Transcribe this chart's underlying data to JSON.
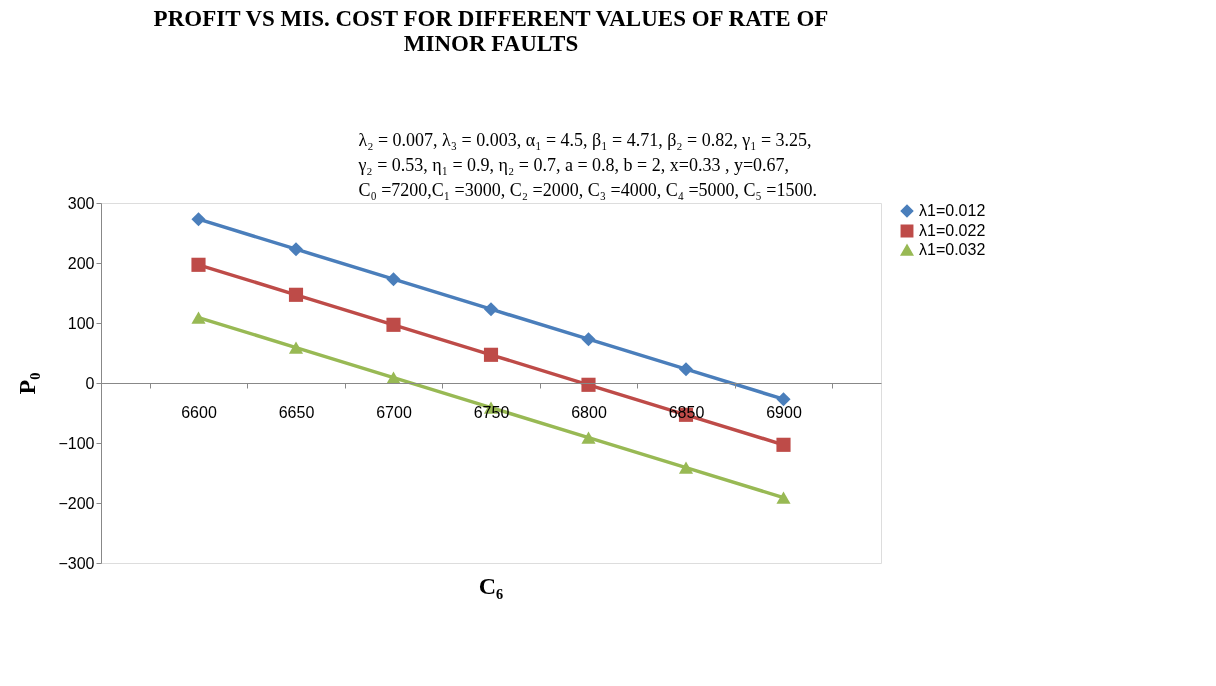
{
  "chart_data": {
    "type": "line",
    "title": [
      "PROFIT VS MIS. COST FOR DIFFERENT VALUES OF RATE OF",
      "MINOR FAULTS"
    ],
    "annotations": [
      "λ₂ = 0.007, λ₃ = 0.003, α₁ = 4.5, β₁ = 4.71, β₂ = 0.82,  γ₁ = 3.25,",
      "γ₂ = 0.53, η₁ = 0.9,  η₂ = 0.7,  a = 0.8,  b = 2,  x=0.33 , y=0.67,",
      "C₀ =7200,C₁ =3000, C₂ =2000, C₃ =4000, C₄ =5000, C₅ =1500."
    ],
    "xlabel": "C₆",
    "ylabel": "P₀",
    "categories": [
      "6600",
      "6650",
      "6700",
      "6750",
      "6800",
      "6850",
      "6900"
    ],
    "series": [
      {
        "name": "λ1=0.012",
        "color": "#4a7ebb",
        "marker": "diamond",
        "values": [
          273,
          223,
          173,
          123,
          73,
          23,
          -27
        ]
      },
      {
        "name": "λ1=0.022",
        "color": "#be4b48",
        "marker": "square",
        "values": [
          197,
          147,
          97,
          47,
          -3,
          -53,
          -103
        ]
      },
      {
        "name": "λ1=0.032",
        "color": "#98b954",
        "marker": "triangle",
        "values": [
          109,
          59,
          9,
          -41,
          -91,
          -141,
          -191
        ]
      }
    ],
    "ylim": [
      -300,
      300
    ],
    "yticks": [
      -300,
      -200,
      -100,
      0,
      100,
      200,
      300
    ],
    "grid": false,
    "legend": "right",
    "line_style": "solid"
  }
}
